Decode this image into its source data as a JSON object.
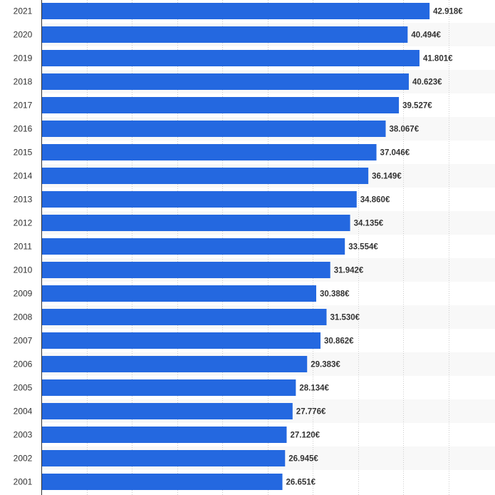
{
  "chart_data": {
    "type": "bar",
    "orientation": "horizontal",
    "title": "",
    "xlabel": "",
    "ylabel": "",
    "categories": [
      "2021",
      "2020",
      "2019",
      "2018",
      "2017",
      "2016",
      "2015",
      "2014",
      "2013",
      "2012",
      "2011",
      "2010",
      "2009",
      "2008",
      "2007",
      "2006",
      "2005",
      "2004",
      "2003",
      "2002",
      "2001"
    ],
    "values": [
      42918,
      40494,
      41801,
      40623,
      39527,
      38067,
      37046,
      36149,
      34860,
      34135,
      33554,
      31942,
      30388,
      31530,
      30862,
      29383,
      28134,
      27776,
      27120,
      26945,
      26651
    ],
    "value_labels": [
      "42.918€",
      "40.494€",
      "41.801€",
      "40.623€",
      "39.527€",
      "38.067€",
      "37.046€",
      "36.149€",
      "34.860€",
      "34.135€",
      "33.554€",
      "31.942€",
      "30.388€",
      "31.530€",
      "30.862€",
      "29.383€",
      "28.134€",
      "27.776€",
      "27.120€",
      "26.945€",
      "26.651€"
    ],
    "xlim": [
      0,
      50000
    ],
    "grid": true,
    "colors": {
      "bar": "#2468e0",
      "stripe": "#f8f8f8",
      "grid": "#cccccc",
      "axis": "#333333"
    }
  }
}
